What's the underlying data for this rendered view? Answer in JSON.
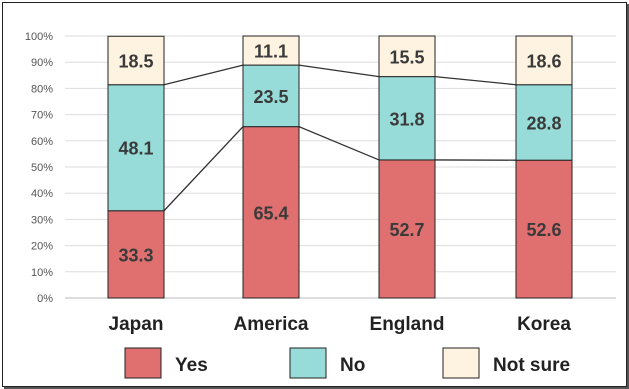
{
  "chart_data": {
    "type": "bar",
    "stacked": true,
    "categories": [
      "Japan",
      "America",
      "England",
      "Korea"
    ],
    "series": [
      {
        "name": "Yes",
        "values": [
          33.3,
          65.4,
          52.7,
          52.6
        ],
        "color": "#e07070"
      },
      {
        "name": "No",
        "values": [
          48.1,
          23.5,
          31.8,
          28.8
        ],
        "color": "#98dcd9"
      },
      {
        "name": "Not sure",
        "values": [
          18.5,
          11.1,
          15.5,
          18.6
        ],
        "color": "#fdf3e0"
      }
    ],
    "ylim": [
      0,
      100
    ],
    "yticks": [
      "0%",
      "10%",
      "20%",
      "30%",
      "40%",
      "50%",
      "60%",
      "70%",
      "80%",
      "90%",
      "100%"
    ],
    "title": "",
    "xlabel": "",
    "ylabel": "",
    "grid": true,
    "legend_position": "bottom",
    "connector_lines": true
  }
}
